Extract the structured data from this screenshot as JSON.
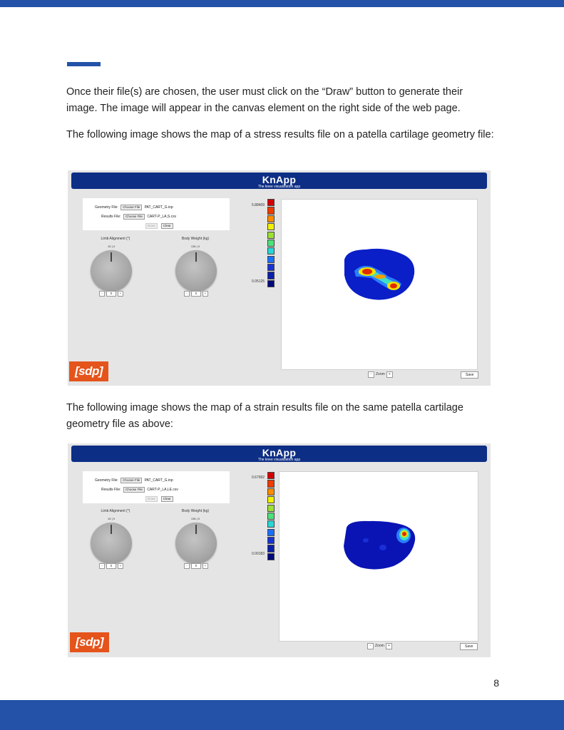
{
  "page": {
    "paragraphs": [
      "Once their file(s) are chosen, the user must click on the “Draw” button to generate their image. The image will appear in the canvas element on the right side of the web page.",
      "The following image shows the map of a stress results file on a patella cartilage geometry file:",
      "The following image shows the map of a strain results file on the same patella cartilage geometry file as above:"
    ],
    "page_number": "8"
  },
  "screenshots": [
    {
      "app_title": "KnApp",
      "app_subtitle": "The knee visualization app",
      "geometry_label": "Geometry File:",
      "geometry_button": "Choose File",
      "geometry_value": "PAT_CART_G.inp",
      "results_label": "Results File:",
      "results_button": "Choose File",
      "results_value": "CART-P_LA,S.csv",
      "draw_label": "Draw",
      "clear_label": "Clear",
      "limb_label": "Limb Alignment (°)",
      "limb_range": "15 | 0",
      "limb_value": "0",
      "weight_label": "Body Weight (kg)",
      "weight_range": "136 | 0",
      "weight_value": "0",
      "legend_max": "5.88409",
      "legend_min": "0.05125",
      "zoom_minus": "-",
      "zoom_label": "Zoom",
      "zoom_plus": "+",
      "save_label": "Save",
      "logo_text": "[sdp]",
      "stepper_minus": "-",
      "stepper_plus": "+"
    },
    {
      "app_title": "KnApp",
      "app_subtitle": "The knee visualization app",
      "geometry_label": "Geometry File:",
      "geometry_button": "Choose File",
      "geometry_value": "PAT_CART_G.inp",
      "results_label": "Results File:",
      "results_button": "Choose File",
      "results_value": "CART-P_LA,LE.csv",
      "draw_label": "Draw",
      "clear_label": "Clear",
      "limb_label": "Limb Alignment (°)",
      "limb_range": "15 | 0",
      "limb_value": "0",
      "weight_label": "Body Weight (kg)",
      "weight_range": "136 | 0",
      "weight_value": "0",
      "legend_max": "0.67992",
      "legend_min": "0.00183",
      "zoom_minus": "-",
      "zoom_label": "Zoom",
      "zoom_plus": "+",
      "save_label": "Save",
      "logo_text": "[sdp]",
      "stepper_minus": "-",
      "stepper_plus": "+"
    }
  ],
  "colors": {
    "brand_blue": "#2352a8",
    "banner_blue": "#0d2e85",
    "logo_orange": "#e4541b",
    "legend_scale": [
      "#d40000",
      "#ee3b00",
      "#ff8c00",
      "#f2f200",
      "#9be034",
      "#4fe07a",
      "#29d6d6",
      "#1a6fff",
      "#1733d1",
      "#0d1fa8",
      "#050a7a"
    ]
  }
}
